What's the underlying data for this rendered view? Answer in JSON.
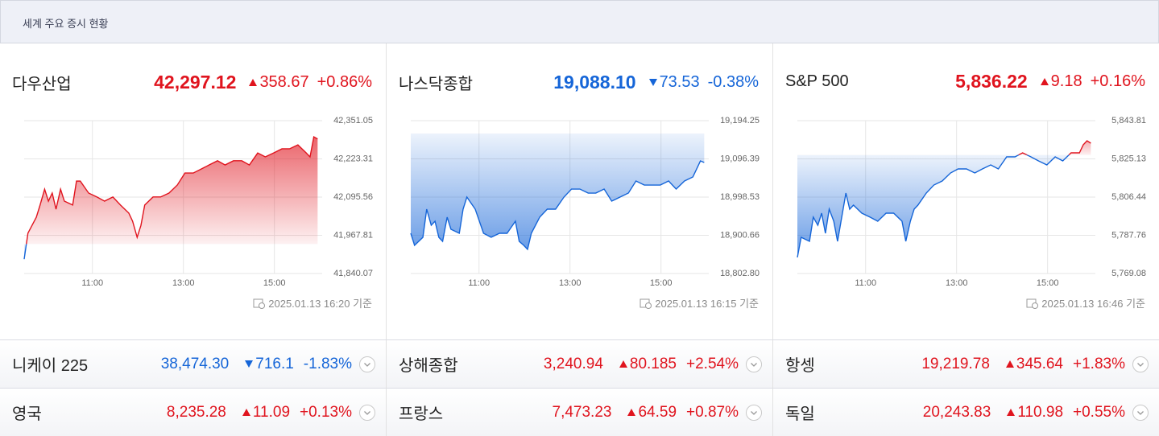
{
  "header": {
    "title": "세계 주요 증시 현황"
  },
  "up_color": "#e0141e",
  "down_color": "#1565d8",
  "panels": [
    {
      "name": "다우산업",
      "value": "42,297.12",
      "change": "358.67",
      "change_pct": "+0.86%",
      "direction": "up",
      "timestamp": "2025.01.13 16:20 기준",
      "chart": {
        "type": "line",
        "baseline": 41938.45,
        "x": [
          570,
          575,
          586,
          591,
          597,
          602,
          607,
          612,
          618,
          623,
          634,
          639,
          644,
          655,
          666,
          676,
          687,
          697,
          708,
          713,
          719,
          724,
          729,
          740,
          750,
          761,
          772,
          782,
          793,
          804,
          814,
          825,
          835,
          846,
          857,
          867,
          878,
          888,
          899,
          910,
          920,
          931,
          942,
          947,
          952,
          957
        ],
        "values": [
          41888,
          41975,
          42028,
          42069,
          42122,
          42082,
          42109,
          42055,
          42122,
          42082,
          42069,
          42149,
          42149,
          42109,
          42096,
          42082,
          42096,
          42069,
          42042,
          42015,
          41961,
          42001,
          42069,
          42096,
          42096,
          42109,
          42136,
          42176,
          42176,
          42190,
          42203,
          42217,
          42203,
          42217,
          42217,
          42203,
          42243,
          42230,
          42243,
          42257,
          42257,
          42270,
          42243,
          42230,
          42297,
          42290
        ],
        "xlim": [
          570,
          963
        ],
        "xticks": [
          {
            "value": 660,
            "label": "11:00"
          },
          {
            "value": 780,
            "label": "13:00"
          },
          {
            "value": 900,
            "label": "15:00"
          }
        ],
        "ylim": [
          41840.07,
          42351.05
        ],
        "yticks": [
          {
            "value": 42351.05,
            "label": "42,351.05"
          },
          {
            "value": 42223.31,
            "label": "42,223.31"
          },
          {
            "value": 42095.56,
            "label": "42,095.56"
          },
          {
            "value": 41967.81,
            "label": "41,967.81"
          },
          {
            "value": 41840.07,
            "label": "41,840.07"
          }
        ],
        "grid": true
      }
    },
    {
      "name": "나스닥종합",
      "value": "19,088.10",
      "change": "73.53",
      "change_pct": "-0.38%",
      "direction": "down",
      "timestamp": "2025.01.13 16:15 기준",
      "chart": {
        "type": "line",
        "baseline": 19161.63,
        "x": [
          570,
          575,
          586,
          591,
          597,
          602,
          607,
          612,
          618,
          623,
          634,
          639,
          644,
          655,
          666,
          676,
          687,
          697,
          708,
          713,
          719,
          724,
          729,
          740,
          750,
          761,
          772,
          782,
          793,
          804,
          814,
          825,
          835,
          846,
          857,
          867,
          878,
          888,
          899,
          910,
          920,
          931,
          942,
          947,
          952,
          957
        ],
        "values": [
          18905.8,
          18874.9,
          18895.5,
          18967.6,
          18926.4,
          18936.7,
          18895.5,
          18885.2,
          18947.0,
          18916.1,
          18905.8,
          18967.6,
          18998.5,
          18967.6,
          18905.8,
          18895.5,
          18905.8,
          18905.8,
          18936.7,
          18885.2,
          18874.9,
          18864.6,
          18905.8,
          18947.0,
          18967.6,
          18967.6,
          18998.5,
          19019.1,
          19019.1,
          19008.8,
          19008.8,
          19019.1,
          18988.2,
          18998.5,
          19008.8,
          19039.7,
          19029.4,
          19029.4,
          19029.4,
          19039.7,
          19019.1,
          19039.7,
          19050.0,
          19070.6,
          19091.2,
          19087.1
        ],
        "xlim": [
          570,
          963
        ],
        "xticks": [
          {
            "value": 660,
            "label": "11:00"
          },
          {
            "value": 780,
            "label": "13:00"
          },
          {
            "value": 900,
            "label": "15:00"
          }
        ],
        "ylim": [
          18802.8,
          19194.25
        ],
        "yticks": [
          {
            "value": 19194.25,
            "label": "19,194.25"
          },
          {
            "value": 19096.39,
            "label": "19,096.39"
          },
          {
            "value": 18998.53,
            "label": "18,998.53"
          },
          {
            "value": 18900.66,
            "label": "18,900.66"
          },
          {
            "value": 18802.8,
            "label": "18,802.80"
          }
        ],
        "grid": true
      }
    },
    {
      "name": "S&P 500",
      "value": "5,836.22",
      "change": "9.18",
      "change_pct": "+0.16%",
      "direction": "up",
      "timestamp": "2025.01.13 16:46 기준",
      "chart": {
        "type": "line",
        "baseline": 5827.04,
        "x": [
          570,
          575,
          586,
          591,
          597,
          602,
          607,
          612,
          618,
          623,
          634,
          639,
          644,
          655,
          666,
          676,
          687,
          697,
          708,
          713,
          719,
          724,
          729,
          740,
          750,
          761,
          772,
          782,
          793,
          804,
          814,
          825,
          835,
          846,
          857,
          867,
          878,
          888,
          899,
          910,
          920,
          931,
          942,
          947,
          952,
          957
        ],
        "values": [
          5776.95,
          5786.78,
          5784.81,
          5796.61,
          5792.68,
          5798.58,
          5788.75,
          5800.54,
          5794.64,
          5784.81,
          5808.41,
          5800.54,
          5802.51,
          5798.58,
          5796.61,
          5794.64,
          5798.58,
          5798.58,
          5794.64,
          5784.81,
          5794.64,
          5800.54,
          5802.51,
          5808.41,
          5812.34,
          5814.31,
          5818.24,
          5820.21,
          5820.21,
          5818.24,
          5820.21,
          5822.18,
          5820.21,
          5826.11,
          5826.11,
          5828.08,
          5826.11,
          5824.14,
          5822.18,
          5826.11,
          5824.14,
          5828.08,
          5828.08,
          5832.01,
          5833.98,
          5832.8
        ],
        "xlim": [
          570,
          963
        ],
        "xticks": [
          {
            "value": 660,
            "label": "11:00"
          },
          {
            "value": 780,
            "label": "13:00"
          },
          {
            "value": 900,
            "label": "15:00"
          }
        ],
        "ylim": [
          5769.08,
          5843.81
        ],
        "yticks": [
          {
            "value": 5843.81,
            "label": "5,843.81"
          },
          {
            "value": 5825.13,
            "label": "5,825.13"
          },
          {
            "value": 5806.44,
            "label": "5,806.44"
          },
          {
            "value": 5787.76,
            "label": "5,787.76"
          },
          {
            "value": 5769.08,
            "label": "5,769.08"
          }
        ],
        "grid": true
      }
    }
  ],
  "table": {
    "rows": [
      [
        {
          "name": "니케이 225",
          "value": "38,474.30",
          "change": "716.1",
          "change_pct": "-1.83%",
          "direction": "down"
        },
        {
          "name": "상해종합",
          "value": "3,240.94",
          "change": "80.185",
          "change_pct": "+2.54%",
          "direction": "up"
        },
        {
          "name": "항셍",
          "value": "19,219.78",
          "change": "345.64",
          "change_pct": "+1.83%",
          "direction": "up"
        }
      ],
      [
        {
          "name": "영국",
          "value": "8,235.28",
          "change": "11.09",
          "change_pct": "+0.13%",
          "direction": "up"
        },
        {
          "name": "프랑스",
          "value": "7,473.23",
          "change": "64.59",
          "change_pct": "+0.87%",
          "direction": "up"
        },
        {
          "name": "독일",
          "value": "20,243.83",
          "change": "110.98",
          "change_pct": "+0.55%",
          "direction": "up"
        }
      ]
    ]
  }
}
